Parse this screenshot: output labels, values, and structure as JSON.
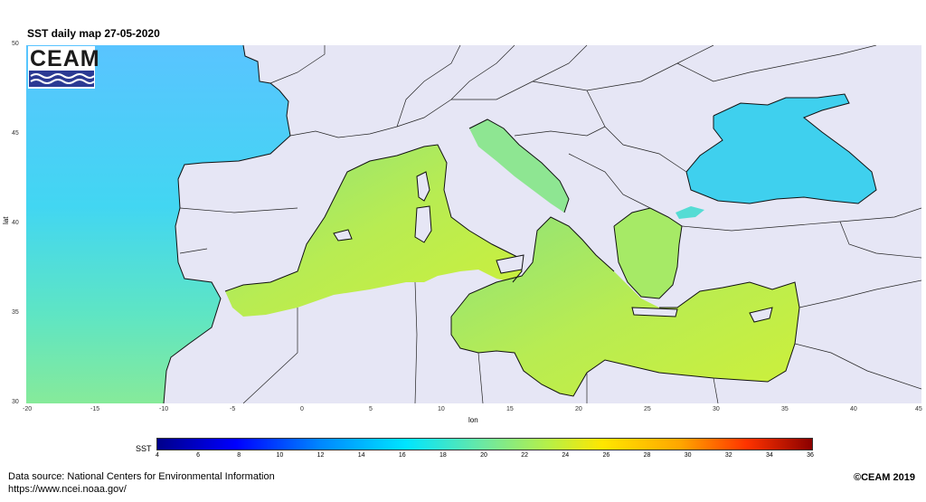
{
  "title": "SST daily map 27-05-2020",
  "logo": {
    "text": "CEAM",
    "icon": "ceam-waves-logo"
  },
  "axes": {
    "ylabel": "lat",
    "xlabel": "lon",
    "lat_ticks": [
      "50",
      "45",
      "40",
      "35",
      "30"
    ],
    "lon_ticks": [
      "-20",
      "-15",
      "-10",
      "-5",
      "0",
      "5",
      "10",
      "15",
      "20",
      "25",
      "30",
      "35",
      "40",
      "45"
    ]
  },
  "colorbar": {
    "label": "SST",
    "ticks": [
      "4",
      "6",
      "8",
      "10",
      "12",
      "14",
      "16",
      "18",
      "20",
      "22",
      "24",
      "26",
      "28",
      "30",
      "32",
      "34",
      "36"
    ],
    "colors": {
      "min": "#00008b",
      "mid": "#b8f045",
      "max": "#8b0000"
    }
  },
  "source_line1": "Data source: National Centers for Environmental Information",
  "source_line2": "https://www.ncei.noaa.gov/",
  "copyright": "©CEAM 2019"
}
